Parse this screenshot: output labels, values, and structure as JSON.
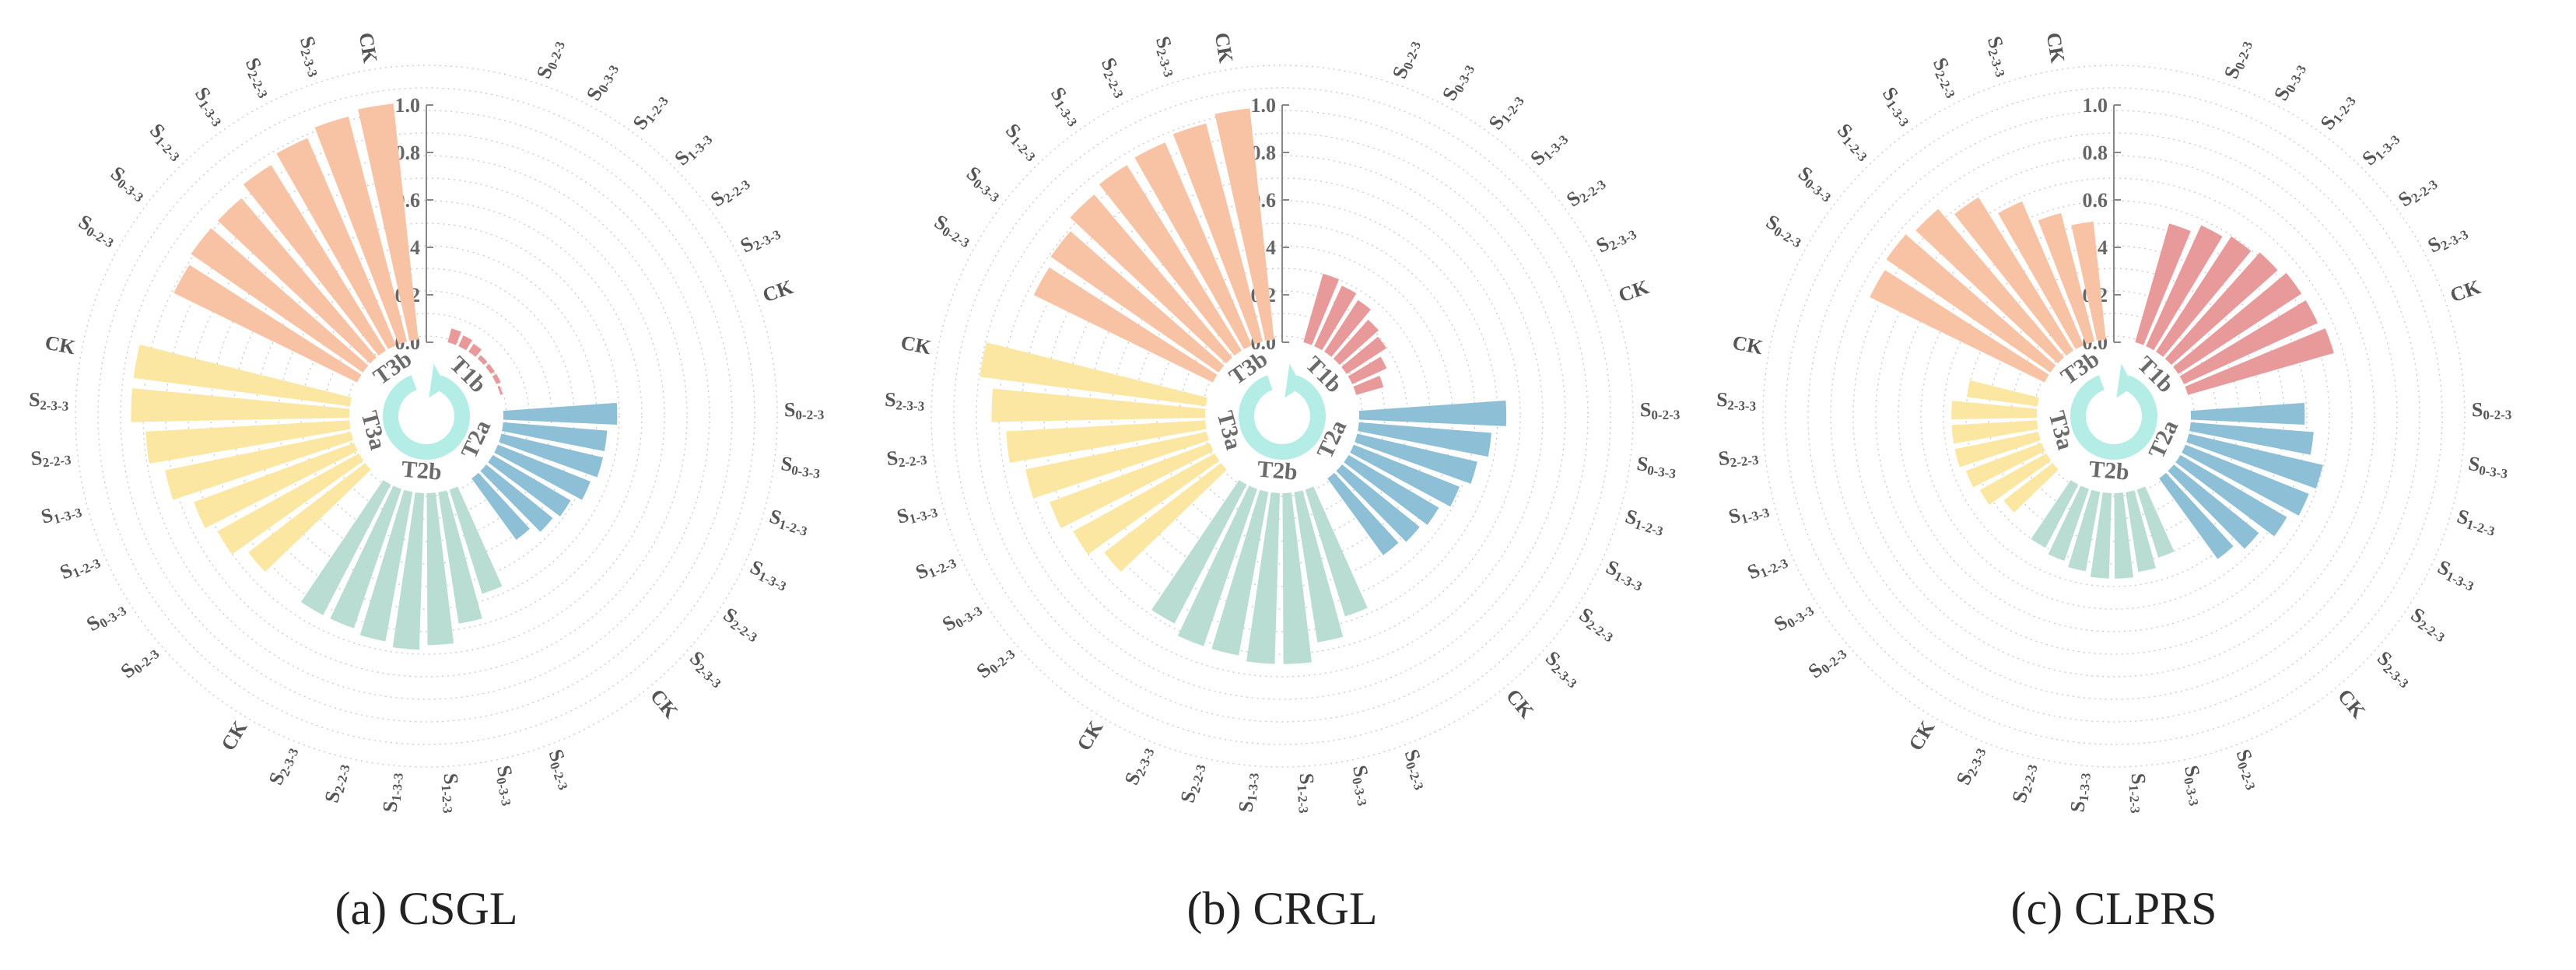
{
  "colors": {
    "T1b": "#e89a9a",
    "T2a": "#8dbfd6",
    "T2b": "#b9ddd2",
    "T3a": "#fbe6a2",
    "T3b": "#f7c3a4",
    "center_arrow": "#b4ece6",
    "grid": "#c8c8c8",
    "axis": "#888888"
  },
  "center_icon": "circular-arrow-icon",
  "chart_data": [
    {
      "type": "radial-bar",
      "caption": "(a) CSGL",
      "ylim": [
        0,
        1.0
      ],
      "ticks": [
        "0.0",
        "0.2",
        "0.4",
        "0.6",
        "0.8",
        "1.0"
      ],
      "groups": [
        {
          "name": "T1b",
          "labels": [
            [
              "0-2-3"
            ],
            [
              "0-3-3"
            ],
            [
              "1-2-3"
            ],
            [
              "1-3-3"
            ],
            [
              "2-2-3"
            ],
            [
              "2-3-3"
            ],
            [
              "CK"
            ]
          ],
          "values": [
            0.06,
            0.05,
            0.04,
            0.02,
            0.02,
            0.02,
            0.01
          ]
        },
        {
          "name": "T2a",
          "labels": [
            [
              "0-2-3"
            ],
            [
              "0-3-3"
            ],
            [
              "1-2-3"
            ],
            [
              "1-3-3"
            ],
            [
              "2-2-3"
            ],
            [
              "2-3-3"
            ],
            [
              "CK"
            ]
          ],
          "values": [
            0.48,
            0.44,
            0.44,
            0.42,
            0.38,
            0.36,
            0.32
          ]
        },
        {
          "name": "T2b",
          "labels": [
            [
              "0-2-3"
            ],
            [
              "0-3-3"
            ],
            [
              "1-2-3"
            ],
            [
              "1-3-3"
            ],
            [
              "2-2-3"
            ],
            [
              "2-3-3"
            ],
            [
              "CK"
            ]
          ],
          "values": [
            0.46,
            0.56,
            0.64,
            0.66,
            0.64,
            0.62,
            0.62
          ]
        },
        {
          "name": "T3a",
          "labels": [
            [
              "0-2-3"
            ],
            [
              "0-3-3"
            ],
            [
              "1-2-3"
            ],
            [
              "1-3-3"
            ],
            [
              "2-2-3"
            ],
            [
              "2-3-3"
            ],
            [
              "CK"
            ]
          ],
          "values": [
            0.62,
            0.68,
            0.72,
            0.8,
            0.86,
            0.92,
            0.92
          ]
        },
        {
          "name": "T3b",
          "labels": [
            [
              "0-2-3"
            ],
            [
              "0-3-3"
            ],
            [
              "1-2-3"
            ],
            [
              "1-3-3"
            ],
            [
              "2-2-3"
            ],
            [
              "2-3-3"
            ],
            [
              "CK"
            ]
          ],
          "values": [
            0.86,
            0.88,
            0.88,
            0.92,
            0.95,
            0.98,
            1.0
          ]
        }
      ]
    },
    {
      "type": "radial-bar",
      "caption": "(b) CRGL",
      "ylim": [
        0,
        1.0
      ],
      "ticks": [
        "0.0",
        "0.2",
        "0.4",
        "0.6",
        "0.8",
        "1.0"
      ],
      "groups": [
        {
          "name": "T1b",
          "labels": [
            [
              "0-2-3"
            ],
            [
              "0-3-3"
            ],
            [
              "1-2-3"
            ],
            [
              "1-3-3"
            ],
            [
              "2-2-3"
            ],
            [
              "2-3-3"
            ],
            [
              "CK"
            ]
          ],
          "values": [
            0.3,
            0.28,
            0.26,
            0.22,
            0.2,
            0.16,
            0.12
          ]
        },
        {
          "name": "T2a",
          "labels": [
            [
              "0-2-3"
            ],
            [
              "0-3-3"
            ],
            [
              "1-2-3"
            ],
            [
              "1-3-3"
            ],
            [
              "2-2-3"
            ],
            [
              "2-3-3"
            ],
            [
              "CK"
            ]
          ],
          "values": [
            0.62,
            0.56,
            0.52,
            0.48,
            0.44,
            0.42,
            0.4
          ]
        },
        {
          "name": "T2b",
          "labels": [
            [
              "0-2-3"
            ],
            [
              "0-3-3"
            ],
            [
              "1-2-3"
            ],
            [
              "1-3-3"
            ],
            [
              "2-2-3"
            ],
            [
              "2-3-3"
            ],
            [
              "CK"
            ]
          ],
          "values": [
            0.56,
            0.64,
            0.72,
            0.72,
            0.7,
            0.7,
            0.66
          ]
        },
        {
          "name": "T3a",
          "labels": [
            [
              "0-2-3"
            ],
            [
              "0-3-3"
            ],
            [
              "1-2-3"
            ],
            [
              "1-3-3"
            ],
            [
              "2-2-3"
            ],
            [
              "2-3-3"
            ],
            [
              "CK"
            ]
          ],
          "values": [
            0.62,
            0.68,
            0.72,
            0.78,
            0.84,
            0.9,
            0.96
          ]
        },
        {
          "name": "T3b",
          "labels": [
            [
              "0-2-3"
            ],
            [
              "0-3-3"
            ],
            [
              "1-2-3"
            ],
            [
              "1-3-3"
            ],
            [
              "2-2-3"
            ],
            [
              "2-3-3"
            ],
            [
              "CK"
            ]
          ],
          "values": [
            0.84,
            0.86,
            0.9,
            0.92,
            0.93,
            0.95,
            0.98
          ]
        }
      ]
    },
    {
      "type": "radial-bar",
      "caption": "(c) CLPRS",
      "ylim": [
        0,
        1.0
      ],
      "ticks": [
        "0.0",
        "0.2",
        "0.4",
        "0.6",
        "0.8",
        "1.0"
      ],
      "groups": [
        {
          "name": "T1b",
          "labels": [
            [
              "0-2-3"
            ],
            [
              "0-3-3"
            ],
            [
              "1-2-3"
            ],
            [
              "1-3-3"
            ],
            [
              "2-2-3"
            ],
            [
              "2-3-3"
            ],
            [
              "CK"
            ]
          ],
          "values": [
            0.52,
            0.56,
            0.58,
            0.6,
            0.62,
            0.62,
            0.64
          ]
        },
        {
          "name": "T2a",
          "labels": [
            [
              "0-2-3"
            ],
            [
              "0-3-3"
            ],
            [
              "1-2-3"
            ],
            [
              "1-3-3"
            ],
            [
              "2-2-3"
            ],
            [
              "2-3-3"
            ],
            [
              "CK"
            ]
          ],
          "values": [
            0.48,
            0.52,
            0.58,
            0.56,
            0.52,
            0.46,
            0.42
          ]
        },
        {
          "name": "T2b",
          "labels": [
            [
              "0-2-3"
            ],
            [
              "0-3-3"
            ],
            [
              "1-2-3"
            ],
            [
              "1-3-3"
            ],
            [
              "2-2-3"
            ],
            [
              "2-3-3"
            ],
            [
              "CK"
            ]
          ],
          "values": [
            0.3,
            0.34,
            0.36,
            0.36,
            0.34,
            0.32,
            0.3
          ]
        },
        {
          "name": "T3a",
          "labels": [
            [
              "0-2-3"
            ],
            [
              "0-3-3"
            ],
            [
              "1-2-3"
            ],
            [
              "1-3-3"
            ],
            [
              "2-2-3"
            ],
            [
              "2-3-3"
            ],
            [
              "CK"
            ]
          ],
          "values": [
            0.26,
            0.32,
            0.34,
            0.36,
            0.36,
            0.36,
            0.3
          ]
        },
        {
          "name": "T3b",
          "labels": [
            [
              "0-2-3"
            ],
            [
              "0-3-3"
            ],
            [
              "1-2-3"
            ],
            [
              "1-3-3"
            ],
            [
              "2-2-3"
            ],
            [
              "2-3-3"
            ],
            [
              "CK"
            ]
          ],
          "values": [
            0.82,
            0.84,
            0.82,
            0.76,
            0.66,
            0.56,
            0.5
          ]
        }
      ]
    }
  ]
}
